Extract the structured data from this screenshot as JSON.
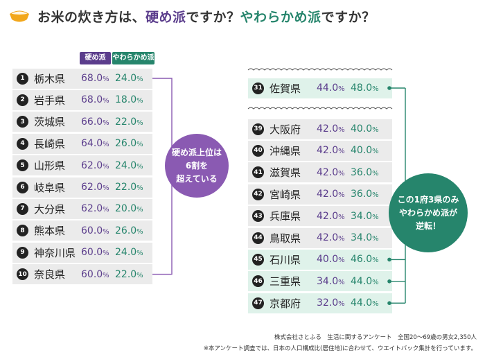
{
  "title": {
    "part1": "お米の炊き方は、",
    "part2": "硬め派",
    "part3": "ですか？",
    "part4": "やわらかめ派",
    "part5": "ですか？"
  },
  "legend": {
    "hard": "硬め派",
    "soft": "やわらかめ派"
  },
  "unit": "%",
  "colors": {
    "hard": "#5b3d8c",
    "soft": "#26856c",
    "highlight": "#dff2ea",
    "callout_hard": "#8a5ab2"
  },
  "callout_hard": {
    "lines": [
      "硬め派上位は",
      "6割を",
      "超えている"
    ]
  },
  "callout_soft": {
    "lines": [
      "この1府3県のみ",
      "やわらかめ派が",
      "逆転！"
    ]
  },
  "source": {
    "line1": "株式会社さとふる　生活に関するアンケート　全国20～69歳の男女2,350人",
    "line2": "※本アンケート調査では、日本の人口構成比(居住地)に合わせて、ウエイトバック集計を行っています。"
  },
  "chart_data": {
    "type": "table",
    "columns": [
      "硬め派",
      "やわらかめ派"
    ],
    "top_ranking": [
      {
        "rank": "1",
        "pref": "栃木県",
        "hard": "68.0",
        "soft": "24.0"
      },
      {
        "rank": "2",
        "pref": "岩手県",
        "hard": "68.0",
        "soft": "18.0"
      },
      {
        "rank": "3",
        "pref": "茨城県",
        "hard": "66.0",
        "soft": "22.0"
      },
      {
        "rank": "4",
        "pref": "長崎県",
        "hard": "64.0",
        "soft": "26.0"
      },
      {
        "rank": "5",
        "pref": "山形県",
        "hard": "62.0",
        "soft": "24.0"
      },
      {
        "rank": "6",
        "pref": "岐阜県",
        "hard": "62.0",
        "soft": "22.0"
      },
      {
        "rank": "7",
        "pref": "大分県",
        "hard": "62.0",
        "soft": "20.0"
      },
      {
        "rank": "8",
        "pref": "熊本県",
        "hard": "60.0",
        "soft": "26.0"
      },
      {
        "rank": "9",
        "pref": "神奈川県",
        "hard": "60.0",
        "soft": "24.0"
      },
      {
        "rank": "10",
        "pref": "奈良県",
        "hard": "60.0",
        "soft": "22.0"
      }
    ],
    "mid_ranking": [
      {
        "rank": "31",
        "pref": "佐賀県",
        "hard": "44.0",
        "soft": "48.0",
        "reversed": true
      }
    ],
    "bottom_ranking": [
      {
        "rank": "39",
        "pref": "大阪府",
        "hard": "42.0",
        "soft": "40.0",
        "reversed": false
      },
      {
        "rank": "40",
        "pref": "沖縄県",
        "hard": "42.0",
        "soft": "40.0",
        "reversed": false
      },
      {
        "rank": "41",
        "pref": "滋賀県",
        "hard": "42.0",
        "soft": "36.0",
        "reversed": false
      },
      {
        "rank": "42",
        "pref": "宮崎県",
        "hard": "42.0",
        "soft": "36.0",
        "reversed": false
      },
      {
        "rank": "43",
        "pref": "兵庫県",
        "hard": "42.0",
        "soft": "34.0",
        "reversed": false
      },
      {
        "rank": "44",
        "pref": "鳥取県",
        "hard": "42.0",
        "soft": "34.0",
        "reversed": false
      },
      {
        "rank": "45",
        "pref": "石川県",
        "hard": "40.0",
        "soft": "46.0",
        "reversed": true
      },
      {
        "rank": "46",
        "pref": "三重県",
        "hard": "34.0",
        "soft": "44.0",
        "reversed": true
      },
      {
        "rank": "47",
        "pref": "京都府",
        "hard": "32.0",
        "soft": "44.0",
        "reversed": true
      }
    ]
  }
}
